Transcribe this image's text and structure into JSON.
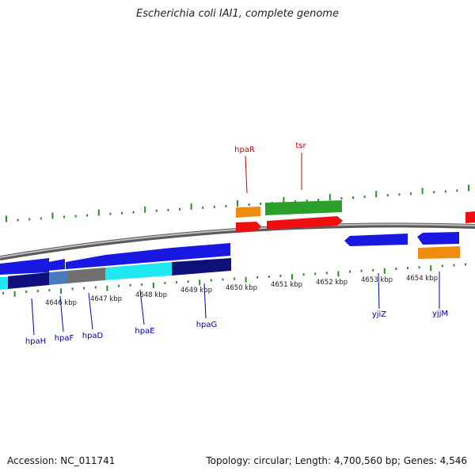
{
  "title": "Escherichia coli IAI1, complete genome",
  "footer": {
    "accession": "Accession: NC_011741",
    "topology": "Topology: circular; Length: 4,700,560 bp; Genes: 4,546"
  },
  "colors": {
    "backbone": "#8c8c8c",
    "tick": "#2e8b2e",
    "gene_label_forward": "#cc0000",
    "gene_label_reverse": "#0000aa",
    "blue": "#1818e0",
    "navy": "#10107a",
    "cyan": "#20e8f0",
    "gray": "#707070",
    "steel": "#4a7bbf",
    "red": "#ee1010",
    "orange": "#f08c10",
    "green": "#2aa02a"
  },
  "scale": {
    "labels": [
      "4646 kbp",
      "4647 kbp",
      "4648 kbp",
      "4649 kbp",
      "4650 kbp",
      "4651 kbp",
      "4652 kbp",
      "4653 kbp",
      "4654 kbp"
    ]
  },
  "genes": [
    {
      "name": "hpaR",
      "strand": "forward"
    },
    {
      "name": "tsr",
      "strand": "forward"
    },
    {
      "name": "hpaH",
      "strand": "reverse"
    },
    {
      "name": "hpaF",
      "strand": "reverse"
    },
    {
      "name": "hpaD",
      "strand": "reverse"
    },
    {
      "name": "hpaE",
      "strand": "reverse"
    },
    {
      "name": "hpaG",
      "strand": "reverse"
    },
    {
      "name": "yjiZ",
      "strand": "reverse"
    },
    {
      "name": "yjjM",
      "strand": "reverse"
    }
  ]
}
